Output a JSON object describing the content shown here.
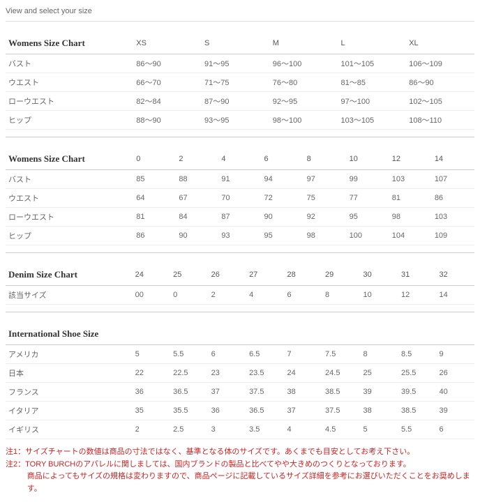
{
  "page_title": "View and select your size",
  "womens1": {
    "title": "Womens Size Chart",
    "headers": [
      "XS",
      "S",
      "M",
      "L",
      "XL"
    ],
    "rows": [
      {
        "label": "バスト",
        "cells": [
          "86～90",
          "91～95",
          "96～100",
          "101～105",
          "106～109"
        ]
      },
      {
        "label": "ウエスト",
        "cells": [
          "66～70",
          "71～75",
          "76～80",
          "81～85",
          "86～90"
        ]
      },
      {
        "label": "ローウエスト",
        "cells": [
          "82～84",
          "87～90",
          "92～95",
          "97～100",
          "102～105"
        ]
      },
      {
        "label": "ヒップ",
        "cells": [
          "88～90",
          "93～95",
          "98～100",
          "103～105",
          "108～110"
        ]
      }
    ]
  },
  "womens2": {
    "title": "Womens Size Chart",
    "headers": [
      "0",
      "2",
      "4",
      "6",
      "8",
      "10",
      "12",
      "14"
    ],
    "rows": [
      {
        "label": "バスト",
        "cells": [
          "85",
          "88",
          "91",
          "94",
          "97",
          "99",
          "103",
          "107"
        ]
      },
      {
        "label": "ウエスト",
        "cells": [
          "64",
          "67",
          "70",
          "72",
          "75",
          "77",
          "81",
          "86"
        ]
      },
      {
        "label": "ローウエスト",
        "cells": [
          "81",
          "84",
          "87",
          "90",
          "92",
          "95",
          "98",
          "103"
        ]
      },
      {
        "label": "ヒップ",
        "cells": [
          "86",
          "90",
          "93",
          "95",
          "98",
          "100",
          "104",
          "109"
        ]
      }
    ]
  },
  "denim": {
    "title": "Denim Size Chart",
    "headers": [
      "24",
      "25",
      "26",
      "27",
      "28",
      "29",
      "30",
      "31",
      "32"
    ],
    "rows": [
      {
        "label": "該当サイズ",
        "cells": [
          "00",
          "0",
          "2",
          "4",
          "6",
          "8",
          "10",
          "12",
          "14"
        ]
      }
    ]
  },
  "shoe": {
    "title": "International Shoe Size",
    "headers": [
      "",
      "",
      "",
      "",
      "",
      "",
      "",
      "",
      ""
    ],
    "rows": [
      {
        "label": "アメリカ",
        "cells": [
          "5",
          "5.5",
          "6",
          "6.5",
          "7",
          "7.5",
          "8",
          "8.5",
          "9"
        ]
      },
      {
        "label": "日本",
        "cells": [
          "22",
          "22.5",
          "23",
          "23.5",
          "24",
          "24.5",
          "25",
          "25.5",
          "26"
        ]
      },
      {
        "label": "フランス",
        "cells": [
          "36",
          "36.5",
          "37",
          "37.5",
          "38",
          "38.5",
          "39",
          "39.5",
          "40"
        ]
      },
      {
        "label": "イタリア",
        "cells": [
          "35",
          "35.5",
          "36",
          "36.5",
          "37",
          "37.5",
          "38",
          "38.5",
          "39"
        ]
      },
      {
        "label": "イギリス",
        "cells": [
          "2",
          "2.5",
          "3",
          "3.5",
          "4",
          "4.5",
          "5",
          "5.5",
          "6"
        ]
      }
    ]
  },
  "notes": {
    "line1": "注1：サイズチャートの数値は商品の寸法ではなく、基準となる体のサイズです。あくまでも目安としてお考え下さい。",
    "line2a": "注2：TORY BURCHのアパレルに関しましては、国内ブランドの製品と比べてやや大きめのつくりとなっております。",
    "line2b": "商品によってもサイズの規格は変わりますので、商品ページに記載しているサイズ詳細を参考にお選びいただくことをお奨めします。"
  }
}
